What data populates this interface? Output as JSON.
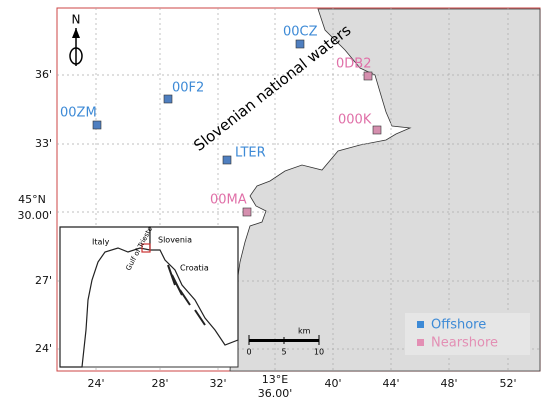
{
  "north": "N",
  "region_label": "Slovenian national waters",
  "stations": [
    {
      "label": "00CZ",
      "group": "offshore"
    },
    {
      "label": "0DB2",
      "group": "nearshore"
    },
    {
      "label": "00F2",
      "group": "offshore"
    },
    {
      "label": "000K",
      "group": "nearshore"
    },
    {
      "label": "00ZM",
      "group": "offshore"
    },
    {
      "label": "LTER",
      "group": "offshore"
    },
    {
      "label": "00MA",
      "group": "nearshore"
    }
  ],
  "x_ticks": [
    "24'",
    "28'",
    "32'",
    "36.00'",
    "40'",
    "44'",
    "48'",
    "52'"
  ],
  "x_degree": "13°E",
  "y_ticks": [
    "36'",
    "33'",
    "30.00'",
    "27'",
    "24'"
  ],
  "y_degree": "45°N",
  "scale_bar": {
    "unit": "km",
    "labels": [
      "0",
      "5",
      "10"
    ]
  },
  "legend": {
    "offshore": "Offshore",
    "nearshore": "Nearshore"
  },
  "inset": {
    "labels": [
      "Italy",
      "Slovenia",
      "Croatia",
      "Gulf of Trieste"
    ]
  }
}
